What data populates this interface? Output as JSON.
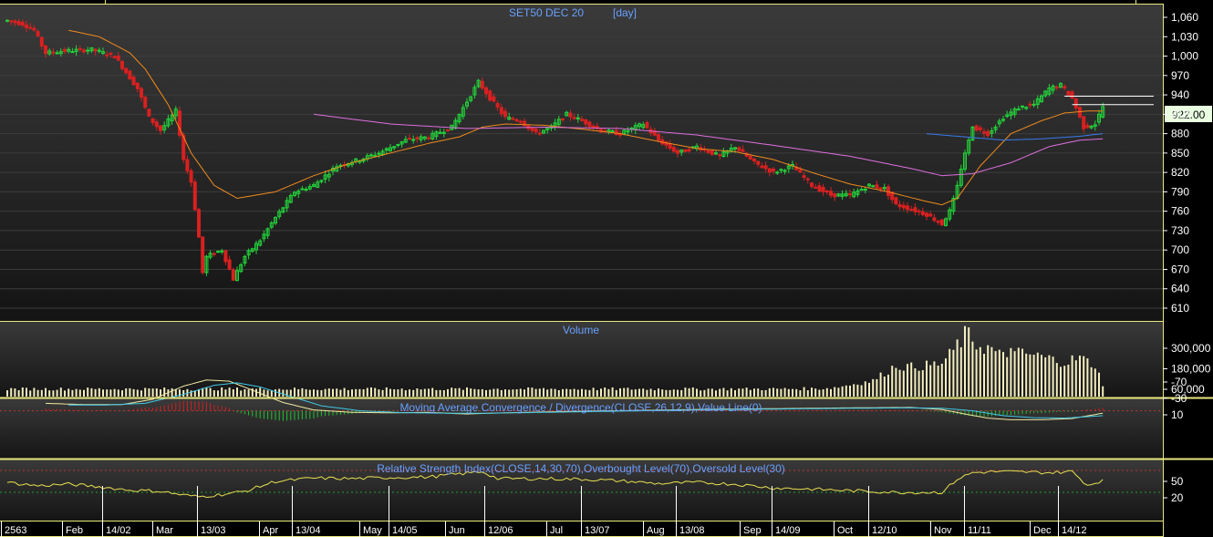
{
  "chart_data": [
    {
      "type": "candlestick",
      "title": "SET50 DEC 20",
      "period": "[day]",
      "last_price": "922.00",
      "y_ticks": [
        "1,060",
        "1,030",
        "1,000",
        "970",
        "940",
        "910",
        "880",
        "850",
        "820",
        "790",
        "760",
        "730",
        "700",
        "670",
        "640",
        "610"
      ],
      "ylim": [
        595,
        1075
      ],
      "x_labels": [
        "2563",
        "Feb",
        "14/02",
        "Mar",
        "13/03",
        "Apr",
        "13/04",
        "May",
        "14/05",
        "Jun",
        "12/06",
        "Jul",
        "13/07",
        "Aug",
        "13/08",
        "Sep",
        "14/09",
        "Oct",
        "12/10",
        "Nov",
        "11/11",
        "Dec",
        "14/12"
      ],
      "close_anchors": [
        [
          0,
          1055
        ],
        [
          4,
          1050
        ],
        [
          7,
          1040
        ],
        [
          10,
          1005
        ],
        [
          15,
          1008
        ],
        [
          22,
          1010
        ],
        [
          28,
          1000
        ],
        [
          31,
          975
        ],
        [
          34,
          950
        ],
        [
          37,
          905
        ],
        [
          40,
          885
        ],
        [
          44,
          915
        ],
        [
          46,
          840
        ],
        [
          48,
          805
        ],
        [
          50,
          720
        ],
        [
          51,
          665
        ],
        [
          52,
          690
        ],
        [
          56,
          700
        ],
        [
          59,
          655
        ],
        [
          62,
          690
        ],
        [
          66,
          715
        ],
        [
          70,
          750
        ],
        [
          75,
          790
        ],
        [
          80,
          800
        ],
        [
          86,
          830
        ],
        [
          92,
          840
        ],
        [
          97,
          850
        ],
        [
          104,
          870
        ],
        [
          110,
          875
        ],
        [
          116,
          890
        ],
        [
          120,
          930
        ],
        [
          123,
          960
        ],
        [
          126,
          935
        ],
        [
          130,
          905
        ],
        [
          134,
          900
        ],
        [
          138,
          880
        ],
        [
          142,
          890
        ],
        [
          146,
          910
        ],
        [
          150,
          900
        ],
        [
          155,
          885
        ],
        [
          160,
          880
        ],
        [
          166,
          895
        ],
        [
          170,
          870
        ],
        [
          175,
          850
        ],
        [
          180,
          860
        ],
        [
          186,
          845
        ],
        [
          190,
          860
        ],
        [
          195,
          835
        ],
        [
          200,
          820
        ],
        [
          205,
          830
        ],
        [
          210,
          800
        ],
        [
          215,
          785
        ],
        [
          220,
          785
        ],
        [
          225,
          800
        ],
        [
          229,
          795
        ],
        [
          232,
          770
        ],
        [
          235,
          765
        ],
        [
          240,
          755
        ],
        [
          244,
          740
        ],
        [
          246,
          760
        ],
        [
          248,
          800
        ],
        [
          250,
          850
        ],
        [
          252,
          890
        ],
        [
          256,
          880
        ],
        [
          260,
          905
        ],
        [
          264,
          920
        ],
        [
          268,
          925
        ],
        [
          272,
          950
        ],
        [
          275,
          955
        ],
        [
          278,
          935
        ],
        [
          281,
          890
        ],
        [
          284,
          895
        ],
        [
          286,
          922
        ]
      ],
      "ma_fast_anchors": [
        [
          16,
          1040
        ],
        [
          24,
          1030
        ],
        [
          32,
          1005
        ],
        [
          36,
          980
        ],
        [
          42,
          925
        ],
        [
          48,
          850
        ],
        [
          54,
          800
        ],
        [
          60,
          780
        ],
        [
          70,
          790
        ],
        [
          80,
          815
        ],
        [
          90,
          835
        ],
        [
          100,
          850
        ],
        [
          110,
          865
        ],
        [
          118,
          875
        ],
        [
          124,
          890
        ],
        [
          130,
          895
        ],
        [
          140,
          893
        ],
        [
          150,
          887
        ],
        [
          160,
          880
        ],
        [
          170,
          868
        ],
        [
          180,
          857
        ],
        [
          190,
          852
        ],
        [
          200,
          840
        ],
        [
          210,
          820
        ],
        [
          220,
          802
        ],
        [
          230,
          790
        ],
        [
          240,
          775
        ],
        [
          244,
          770
        ],
        [
          248,
          780
        ],
        [
          254,
          830
        ],
        [
          262,
          880
        ],
        [
          270,
          900
        ],
        [
          276,
          912
        ],
        [
          282,
          915
        ],
        [
          286,
          915
        ]
      ],
      "ma_mid_anchors": [
        [
          240,
          880
        ],
        [
          250,
          875
        ],
        [
          260,
          870
        ],
        [
          270,
          872
        ],
        [
          280,
          876
        ],
        [
          286,
          880
        ]
      ],
      "ma_slow_anchors": [
        [
          80,
          910
        ],
        [
          100,
          895
        ],
        [
          120,
          888
        ],
        [
          140,
          890
        ],
        [
          160,
          888
        ],
        [
          180,
          878
        ],
        [
          200,
          862
        ],
        [
          220,
          845
        ],
        [
          236,
          826
        ],
        [
          244,
          815
        ],
        [
          252,
          818
        ],
        [
          262,
          835
        ],
        [
          272,
          860
        ],
        [
          280,
          870
        ],
        [
          286,
          872
        ]
      ],
      "levels": [
        {
          "value": 938,
          "from": 276
        },
        {
          "value": 925,
          "from": 278
        }
      ]
    },
    {
      "type": "bar",
      "title": "Volume",
      "y_ticks": [
        "300,000",
        "180,000",
        "60,000"
      ],
      "ylim": [
        30000,
        420000
      ],
      "base_level": 58000,
      "anchors": [
        [
          0,
          62000
        ],
        [
          200,
          62000
        ],
        [
          212,
          64000
        ],
        [
          216,
          70000
        ],
        [
          222,
          95000
        ],
        [
          226,
          110000
        ],
        [
          228,
          140000
        ],
        [
          230,
          170000
        ],
        [
          232,
          200000
        ],
        [
          236,
          190000
        ],
        [
          240,
          200000
        ],
        [
          244,
          210000
        ],
        [
          246,
          260000
        ],
        [
          248,
          320000
        ],
        [
          250,
          380000
        ],
        [
          252,
          330000
        ],
        [
          256,
          300000
        ],
        [
          260,
          250000
        ],
        [
          264,
          270000
        ],
        [
          268,
          260000
        ],
        [
          272,
          240000
        ],
        [
          276,
          220000
        ],
        [
          280,
          245000
        ],
        [
          284,
          200000
        ],
        [
          286,
          90000
        ]
      ],
      "spikes": [
        [
          249,
          340000
        ],
        [
          251,
          370000
        ],
        [
          252,
          350000
        ],
        [
          257,
          300000
        ],
        [
          262,
          340000
        ]
      ]
    },
    {
      "type": "line",
      "title": "Moving Average Convergence / Divergence(CLOSE,26,12,9),Value Line(0)",
      "y_ticks": [
        "10",
        "-30",
        "-70"
      ],
      "ylim": [
        -85,
        30
      ],
      "macd_anchors": [
        [
          10,
          -18
        ],
        [
          20,
          -15
        ],
        [
          30,
          -15
        ],
        [
          38,
          -28
        ],
        [
          46,
          -60
        ],
        [
          52,
          -75
        ],
        [
          58,
          -72
        ],
        [
          64,
          -50
        ],
        [
          72,
          -20
        ],
        [
          80,
          -2
        ],
        [
          90,
          4
        ],
        [
          100,
          5
        ],
        [
          110,
          4
        ],
        [
          120,
          8
        ],
        [
          126,
          6
        ],
        [
          140,
          3
        ],
        [
          160,
          0
        ],
        [
          180,
          -3
        ],
        [
          200,
          -5
        ],
        [
          220,
          -7
        ],
        [
          236,
          -8
        ],
        [
          244,
          -3
        ],
        [
          250,
          8
        ],
        [
          256,
          18
        ],
        [
          262,
          22
        ],
        [
          270,
          22
        ],
        [
          278,
          19
        ],
        [
          286,
          6
        ]
      ],
      "signal_anchors": [
        [
          16,
          -14
        ],
        [
          26,
          -14
        ],
        [
          36,
          -18
        ],
        [
          46,
          -40
        ],
        [
          54,
          -62
        ],
        [
          60,
          -68
        ],
        [
          66,
          -58
        ],
        [
          74,
          -35
        ],
        [
          82,
          -12
        ],
        [
          92,
          0
        ],
        [
          104,
          5
        ],
        [
          116,
          6
        ],
        [
          126,
          6
        ],
        [
          140,
          4
        ],
        [
          160,
          1
        ],
        [
          180,
          -2
        ],
        [
          200,
          -4
        ],
        [
          220,
          -6
        ],
        [
          236,
          -7
        ],
        [
          244,
          -6
        ],
        [
          252,
          0
        ],
        [
          260,
          12
        ],
        [
          268,
          17
        ],
        [
          276,
          18
        ],
        [
          286,
          12
        ]
      ]
    },
    {
      "type": "line",
      "title": "Relative Strength Index(CLOSE,14,30,70),Overbought Level(70),Oversold Level(30)",
      "y_ticks": [
        "50",
        "20"
      ],
      "ylim": [
        5,
        82
      ],
      "overbought": 70,
      "oversold": 30,
      "anchors": [
        [
          0,
          48
        ],
        [
          8,
          42
        ],
        [
          16,
          45
        ],
        [
          24,
          40
        ],
        [
          32,
          34
        ],
        [
          40,
          32
        ],
        [
          46,
          25
        ],
        [
          50,
          22
        ],
        [
          56,
          26
        ],
        [
          62,
          32
        ],
        [
          70,
          50
        ],
        [
          80,
          56
        ],
        [
          90,
          55
        ],
        [
          100,
          57
        ],
        [
          110,
          58
        ],
        [
          120,
          65
        ],
        [
          124,
          68
        ],
        [
          128,
          55
        ],
        [
          140,
          55
        ],
        [
          150,
          54
        ],
        [
          160,
          51
        ],
        [
          170,
          46
        ],
        [
          180,
          48
        ],
        [
          190,
          45
        ],
        [
          200,
          38
        ],
        [
          210,
          36
        ],
        [
          220,
          33
        ],
        [
          232,
          30
        ],
        [
          244,
          30
        ],
        [
          248,
          54
        ],
        [
          252,
          66
        ],
        [
          258,
          68
        ],
        [
          266,
          67
        ],
        [
          272,
          66
        ],
        [
          278,
          68
        ],
        [
          282,
          43
        ],
        [
          286,
          52
        ]
      ]
    }
  ]
}
